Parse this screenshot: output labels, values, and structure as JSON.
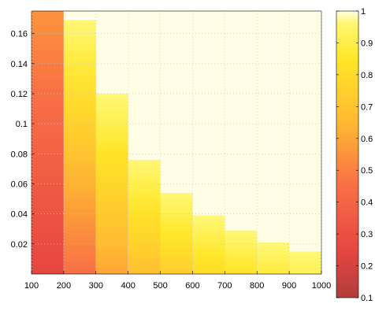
{
  "chart_data": {
    "type": "heatmap",
    "title": "",
    "xlabel": "",
    "ylabel": "",
    "xlim": [
      100,
      1000
    ],
    "ylim": [
      0,
      0.175
    ],
    "grid": true,
    "x_ticks": [
      "100",
      "200",
      "300",
      "400",
      "500",
      "600",
      "700",
      "800",
      "900",
      "1000"
    ],
    "y_ticks": [
      "0.02",
      "0.04",
      "0.06",
      "0.08",
      "0.1",
      "0.12",
      "0.14",
      "0.16"
    ],
    "columns": [
      {
        "x": [
          100,
          200
        ],
        "y_top": 0.175,
        "color_bottom": 0.25,
        "color_top": 0.55
      },
      {
        "x": [
          200,
          300
        ],
        "y_top": 0.169,
        "color_bottom": 0.45,
        "color_top": 0.97
      },
      {
        "x": [
          300,
          400
        ],
        "y_top": 0.12,
        "color_bottom": 0.6,
        "color_top": 0.97
      },
      {
        "x": [
          400,
          500
        ],
        "y_top": 0.076,
        "color_bottom": 0.68,
        "color_top": 0.97
      },
      {
        "x": [
          500,
          600
        ],
        "y_top": 0.054,
        "color_bottom": 0.74,
        "color_top": 0.97
      },
      {
        "x": [
          600,
          700
        ],
        "y_top": 0.039,
        "color_bottom": 0.8,
        "color_top": 0.97
      },
      {
        "x": [
          700,
          800
        ],
        "y_top": 0.029,
        "color_bottom": 0.84,
        "color_top": 0.97
      },
      {
        "x": [
          800,
          900
        ],
        "y_top": 0.021,
        "color_bottom": 0.88,
        "color_top": 0.97
      },
      {
        "x": [
          900,
          1000
        ],
        "y_top": 0.015,
        "color_bottom": 0.92,
        "color_top": 0.97
      }
    ],
    "background_value": 1,
    "colorbar": {
      "range": [
        0.1,
        1
      ],
      "ticks": [
        "0.1",
        "0.2",
        "0.3",
        "0.4",
        "0.5",
        "0.6",
        "0.7",
        "0.8",
        "0.9",
        "1"
      ],
      "colormap": "autumn-hot"
    }
  }
}
